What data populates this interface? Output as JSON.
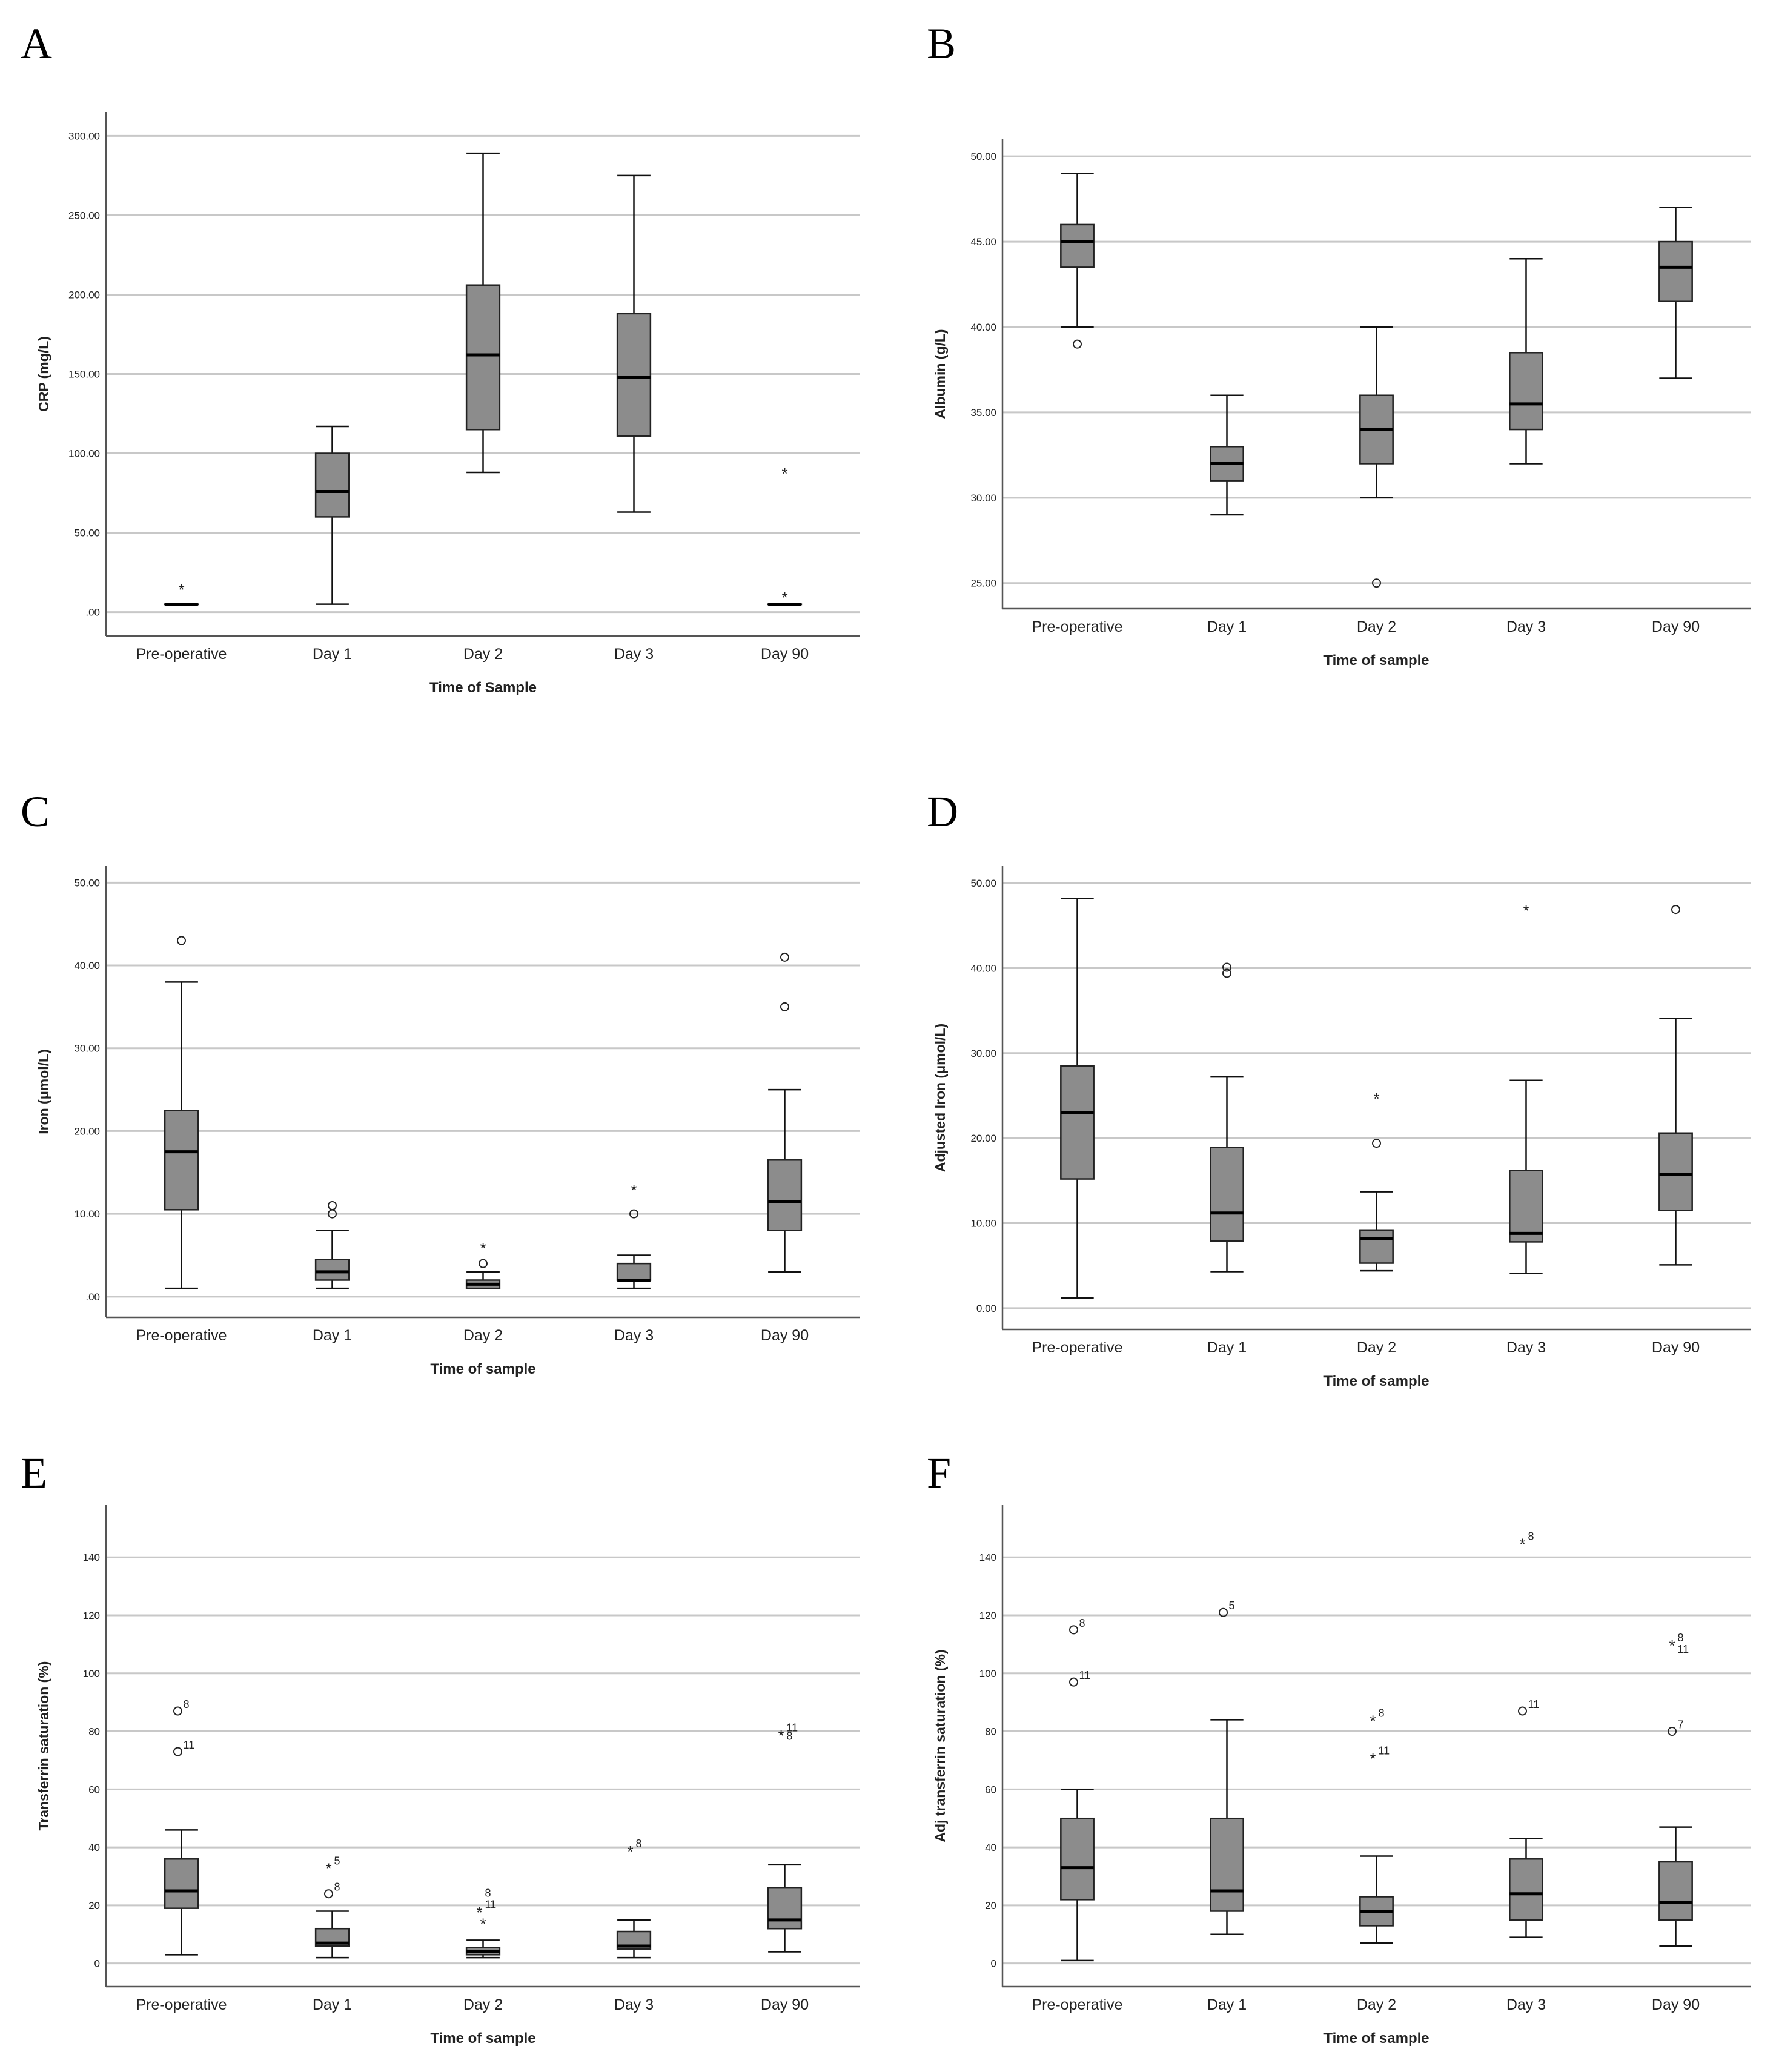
{
  "colors": {
    "box_fill": "#8c8c8c",
    "grid": "#c8c8c8",
    "axis": "#555555",
    "text": "#222222"
  },
  "panels": [
    {
      "letter": "A"
    },
    {
      "letter": "B"
    },
    {
      "letter": "C"
    },
    {
      "letter": "D"
    },
    {
      "letter": "E"
    },
    {
      "letter": "F"
    }
  ],
  "chart_data": [
    {
      "type": "box",
      "panel": "A",
      "ylabel": "CRP (mg/L)",
      "xlabel": "Time of Sample",
      "ylim": [
        -15,
        315
      ],
      "yticks": [
        0,
        50,
        100,
        150,
        200,
        250,
        300
      ],
      "ytick_labels": [
        ".00",
        "50.00",
        "100.00",
        "150.00",
        "200.00",
        "250.00",
        "300.00"
      ],
      "categories": [
        "Pre-operative",
        "Day 1",
        "Day 2",
        "Day 3",
        "Day 90"
      ],
      "boxes": [
        {
          "whislo": 5,
          "q1": 5,
          "med": 5,
          "q3": 5,
          "whishi": 5,
          "outliers": [
            {
              "v": 15,
              "m": "star",
              "label": ""
            }
          ]
        },
        {
          "whislo": 5,
          "q1": 60,
          "med": 76,
          "q3": 100,
          "whishi": 117,
          "outliers": []
        },
        {
          "whislo": 88,
          "q1": 115,
          "med": 162,
          "q3": 206,
          "whishi": 289,
          "outliers": []
        },
        {
          "whislo": 63,
          "q1": 111,
          "med": 148,
          "q3": 188,
          "whishi": 275,
          "outliers": []
        },
        {
          "whislo": 5,
          "q1": 5,
          "med": 5,
          "q3": 5,
          "whishi": 5,
          "outliers": [
            {
              "v": 88,
              "m": "star",
              "label": ""
            },
            {
              "v": 10,
              "m": "star",
              "label": ""
            }
          ]
        }
      ]
    },
    {
      "type": "box",
      "panel": "B",
      "ylabel": "Albumin (g/L)",
      "xlabel": "Time of sample",
      "ylim": [
        23.5,
        51
      ],
      "yticks": [
        25,
        30,
        35,
        40,
        45,
        50
      ],
      "ytick_labels": [
        "25.00",
        "30.00",
        "35.00",
        "40.00",
        "45.00",
        "50.00"
      ],
      "categories": [
        "Pre-operative",
        "Day 1",
        "Day 2",
        "Day 3",
        "Day 90"
      ],
      "boxes": [
        {
          "whislo": 40,
          "q1": 43.5,
          "med": 45,
          "q3": 46,
          "whishi": 49,
          "outliers": [
            {
              "v": 39,
              "m": "circle",
              "label": ""
            }
          ]
        },
        {
          "whislo": 29,
          "q1": 31,
          "med": 32,
          "q3": 33,
          "whishi": 36,
          "outliers": []
        },
        {
          "whislo": 30,
          "q1": 32,
          "med": 34,
          "q3": 36,
          "whishi": 40,
          "outliers": [
            {
              "v": 25,
              "m": "circle",
              "label": ""
            }
          ]
        },
        {
          "whislo": 32,
          "q1": 34,
          "med": 35.5,
          "q3": 38.5,
          "whishi": 44,
          "outliers": []
        },
        {
          "whislo": 37,
          "q1": 41.5,
          "med": 43.5,
          "q3": 45,
          "whishi": 47,
          "outliers": []
        }
      ]
    },
    {
      "type": "box",
      "panel": "C",
      "ylabel": "Iron (μmol/L)",
      "xlabel": "Time of sample",
      "ylim": [
        -2.5,
        52
      ],
      "yticks": [
        0,
        10,
        20,
        30,
        40,
        50
      ],
      "ytick_labels": [
        ".00",
        "10.00",
        "20.00",
        "30.00",
        "40.00",
        "50.00"
      ],
      "categories": [
        "Pre-operative",
        "Day 1",
        "Day 2",
        "Day 3",
        "Day 90"
      ],
      "boxes": [
        {
          "whislo": 1,
          "q1": 10.5,
          "med": 17.5,
          "q3": 22.5,
          "whishi": 38,
          "outliers": [
            {
              "v": 43,
              "m": "circle",
              "label": ""
            }
          ]
        },
        {
          "whislo": 1,
          "q1": 2,
          "med": 3,
          "q3": 4.5,
          "whishi": 8,
          "outliers": [
            {
              "v": 10,
              "m": "circle",
              "label": ""
            },
            {
              "v": 11,
              "m": "circle",
              "label": ""
            }
          ]
        },
        {
          "whislo": 1,
          "q1": 1,
          "med": 1.5,
          "q3": 2,
          "whishi": 3,
          "outliers": [
            {
              "v": 4,
              "m": "circle",
              "label": ""
            },
            {
              "v": 6,
              "m": "star",
              "label": ""
            }
          ]
        },
        {
          "whislo": 1,
          "q1": 2,
          "med": 2,
          "q3": 4,
          "whishi": 5,
          "outliers": [
            {
              "v": 10,
              "m": "circle",
              "label": ""
            },
            {
              "v": 13,
              "m": "star",
              "label": ""
            }
          ]
        },
        {
          "whislo": 3,
          "q1": 8,
          "med": 11.5,
          "q3": 16.5,
          "whishi": 25,
          "outliers": [
            {
              "v": 35,
              "m": "circle",
              "label": ""
            },
            {
              "v": 41,
              "m": "circle",
              "label": ""
            }
          ]
        }
      ]
    },
    {
      "type": "box",
      "panel": "D",
      "ylabel": "Adjusted Iron (μmol/L)",
      "xlabel": "Time of sample",
      "ylim": [
        -2.5,
        52
      ],
      "yticks": [
        0,
        10,
        20,
        30,
        40,
        50
      ],
      "ytick_labels": [
        "0.00",
        "10.00",
        "20.00",
        "30.00",
        "40.00",
        "50.00"
      ],
      "categories": [
        "Pre-operative",
        "Day 1",
        "Day 2",
        "Day 3",
        "Day 90"
      ],
      "boxes": [
        {
          "whislo": 1.2,
          "q1": 15.2,
          "med": 23,
          "q3": 28.5,
          "whishi": 48.2,
          "outliers": []
        },
        {
          "whislo": 4.3,
          "q1": 7.9,
          "med": 11.2,
          "q3": 18.9,
          "whishi": 27.2,
          "outliers": [
            {
              "v": 39.4,
              "m": "circle",
              "label": ""
            },
            {
              "v": 40.1,
              "m": "circle",
              "label": ""
            }
          ]
        },
        {
          "whislo": 4.4,
          "q1": 5.3,
          "med": 8.2,
          "q3": 9.2,
          "whishi": 13.7,
          "outliers": [
            {
              "v": 19.4,
              "m": "circle",
              "label": ""
            },
            {
              "v": 24.8,
              "m": "star",
              "label": ""
            }
          ]
        },
        {
          "whislo": 4.1,
          "q1": 7.8,
          "med": 8.8,
          "q3": 16.2,
          "whishi": 26.8,
          "outliers": [
            {
              "v": 46.9,
              "m": "star",
              "label": ""
            }
          ]
        },
        {
          "whislo": 5.1,
          "q1": 11.5,
          "med": 15.7,
          "q3": 20.6,
          "whishi": 34.1,
          "outliers": [
            {
              "v": 46.9,
              "m": "circle",
              "label": ""
            }
          ]
        }
      ]
    },
    {
      "type": "box",
      "panel": "E",
      "ylabel": "Transferrin saturation (%)",
      "xlabel": "Time of sample",
      "ylim": [
        -8,
        158
      ],
      "yticks": [
        0,
        20,
        40,
        60,
        80,
        100,
        120,
        140
      ],
      "ytick_labels": [
        "0",
        "20",
        "40",
        "60",
        "80",
        "100",
        "120",
        "140"
      ],
      "categories": [
        "Pre-operative",
        "Day 1",
        "Day 2",
        "Day 3",
        "Day 90"
      ],
      "boxes": [
        {
          "whislo": 3,
          "q1": 19,
          "med": 25,
          "q3": 36,
          "whishi": 46,
          "outliers": [
            {
              "v": 73,
              "m": "circle",
              "label": "11"
            },
            {
              "v": 87,
              "m": "circle",
              "label": "8"
            }
          ]
        },
        {
          "whislo": 2,
          "q1": 6,
          "med": 7,
          "q3": 12,
          "whishi": 18,
          "outliers": [
            {
              "v": 24,
              "m": "circle",
              "label": "8"
            },
            {
              "v": 33,
              "m": "star",
              "label": "5"
            }
          ]
        },
        {
          "whislo": 2,
          "q1": 3,
          "med": 4,
          "q3": 5.5,
          "whishi": 8,
          "outliers": [
            {
              "v": 14,
              "m": "star",
              "label": ""
            },
            {
              "v": 18,
              "m": "star",
              "label": "11"
            },
            {
              "v": 22,
              "m": "none",
              "label": "8"
            }
          ]
        },
        {
          "whislo": 2,
          "q1": 5,
          "med": 6,
          "q3": 11,
          "whishi": 15,
          "outliers": [
            {
              "v": 39,
              "m": "star",
              "label": "8"
            }
          ]
        },
        {
          "whislo": 4,
          "q1": 12,
          "med": 15,
          "q3": 26,
          "whishi": 34,
          "outliers": [
            {
              "v": 79,
              "m": "star",
              "label": "11"
            },
            {
              "v": 76,
              "m": "none",
              "label": "8"
            }
          ]
        }
      ]
    },
    {
      "type": "box",
      "panel": "F",
      "ylabel": "Adj transferrin saturation (%)",
      "xlabel": "Time of sample",
      "ylim": [
        -8,
        158
      ],
      "yticks": [
        0,
        20,
        40,
        60,
        80,
        100,
        120,
        140
      ],
      "ytick_labels": [
        "0",
        "20",
        "40",
        "60",
        "80",
        "100",
        "120",
        "140"
      ],
      "categories": [
        "Pre-operative",
        "Day 1",
        "Day 2",
        "Day 3",
        "Day 90"
      ],
      "boxes": [
        {
          "whislo": 1,
          "q1": 22,
          "med": 33,
          "q3": 50,
          "whishi": 60,
          "outliers": [
            {
              "v": 97,
              "m": "circle",
              "label": "11"
            },
            {
              "v": 115,
              "m": "circle",
              "label": "8"
            }
          ]
        },
        {
          "whislo": 10,
          "q1": 18,
          "med": 25,
          "q3": 50,
          "whishi": 84,
          "outliers": [
            {
              "v": 121,
              "m": "circle",
              "label": "5"
            }
          ]
        },
        {
          "whislo": 7,
          "q1": 13,
          "med": 18,
          "q3": 23,
          "whishi": 37,
          "outliers": [
            {
              "v": 71,
              "m": "star",
              "label": "11"
            },
            {
              "v": 84,
              "m": "star",
              "label": "8"
            }
          ]
        },
        {
          "whislo": 9,
          "q1": 15,
          "med": 24,
          "q3": 36,
          "whishi": 43,
          "outliers": [
            {
              "v": 87,
              "m": "circle",
              "label": "11"
            },
            {
              "v": 145,
              "m": "star",
              "label": "8"
            }
          ]
        },
        {
          "whislo": 6,
          "q1": 15,
          "med": 21,
          "q3": 35,
          "whishi": 47,
          "outliers": [
            {
              "v": 80,
              "m": "circle",
              "label": "7"
            },
            {
              "v": 110,
              "m": "star",
              "label": "8"
            },
            {
              "v": 106,
              "m": "none",
              "label": "11"
            }
          ]
        }
      ]
    }
  ]
}
